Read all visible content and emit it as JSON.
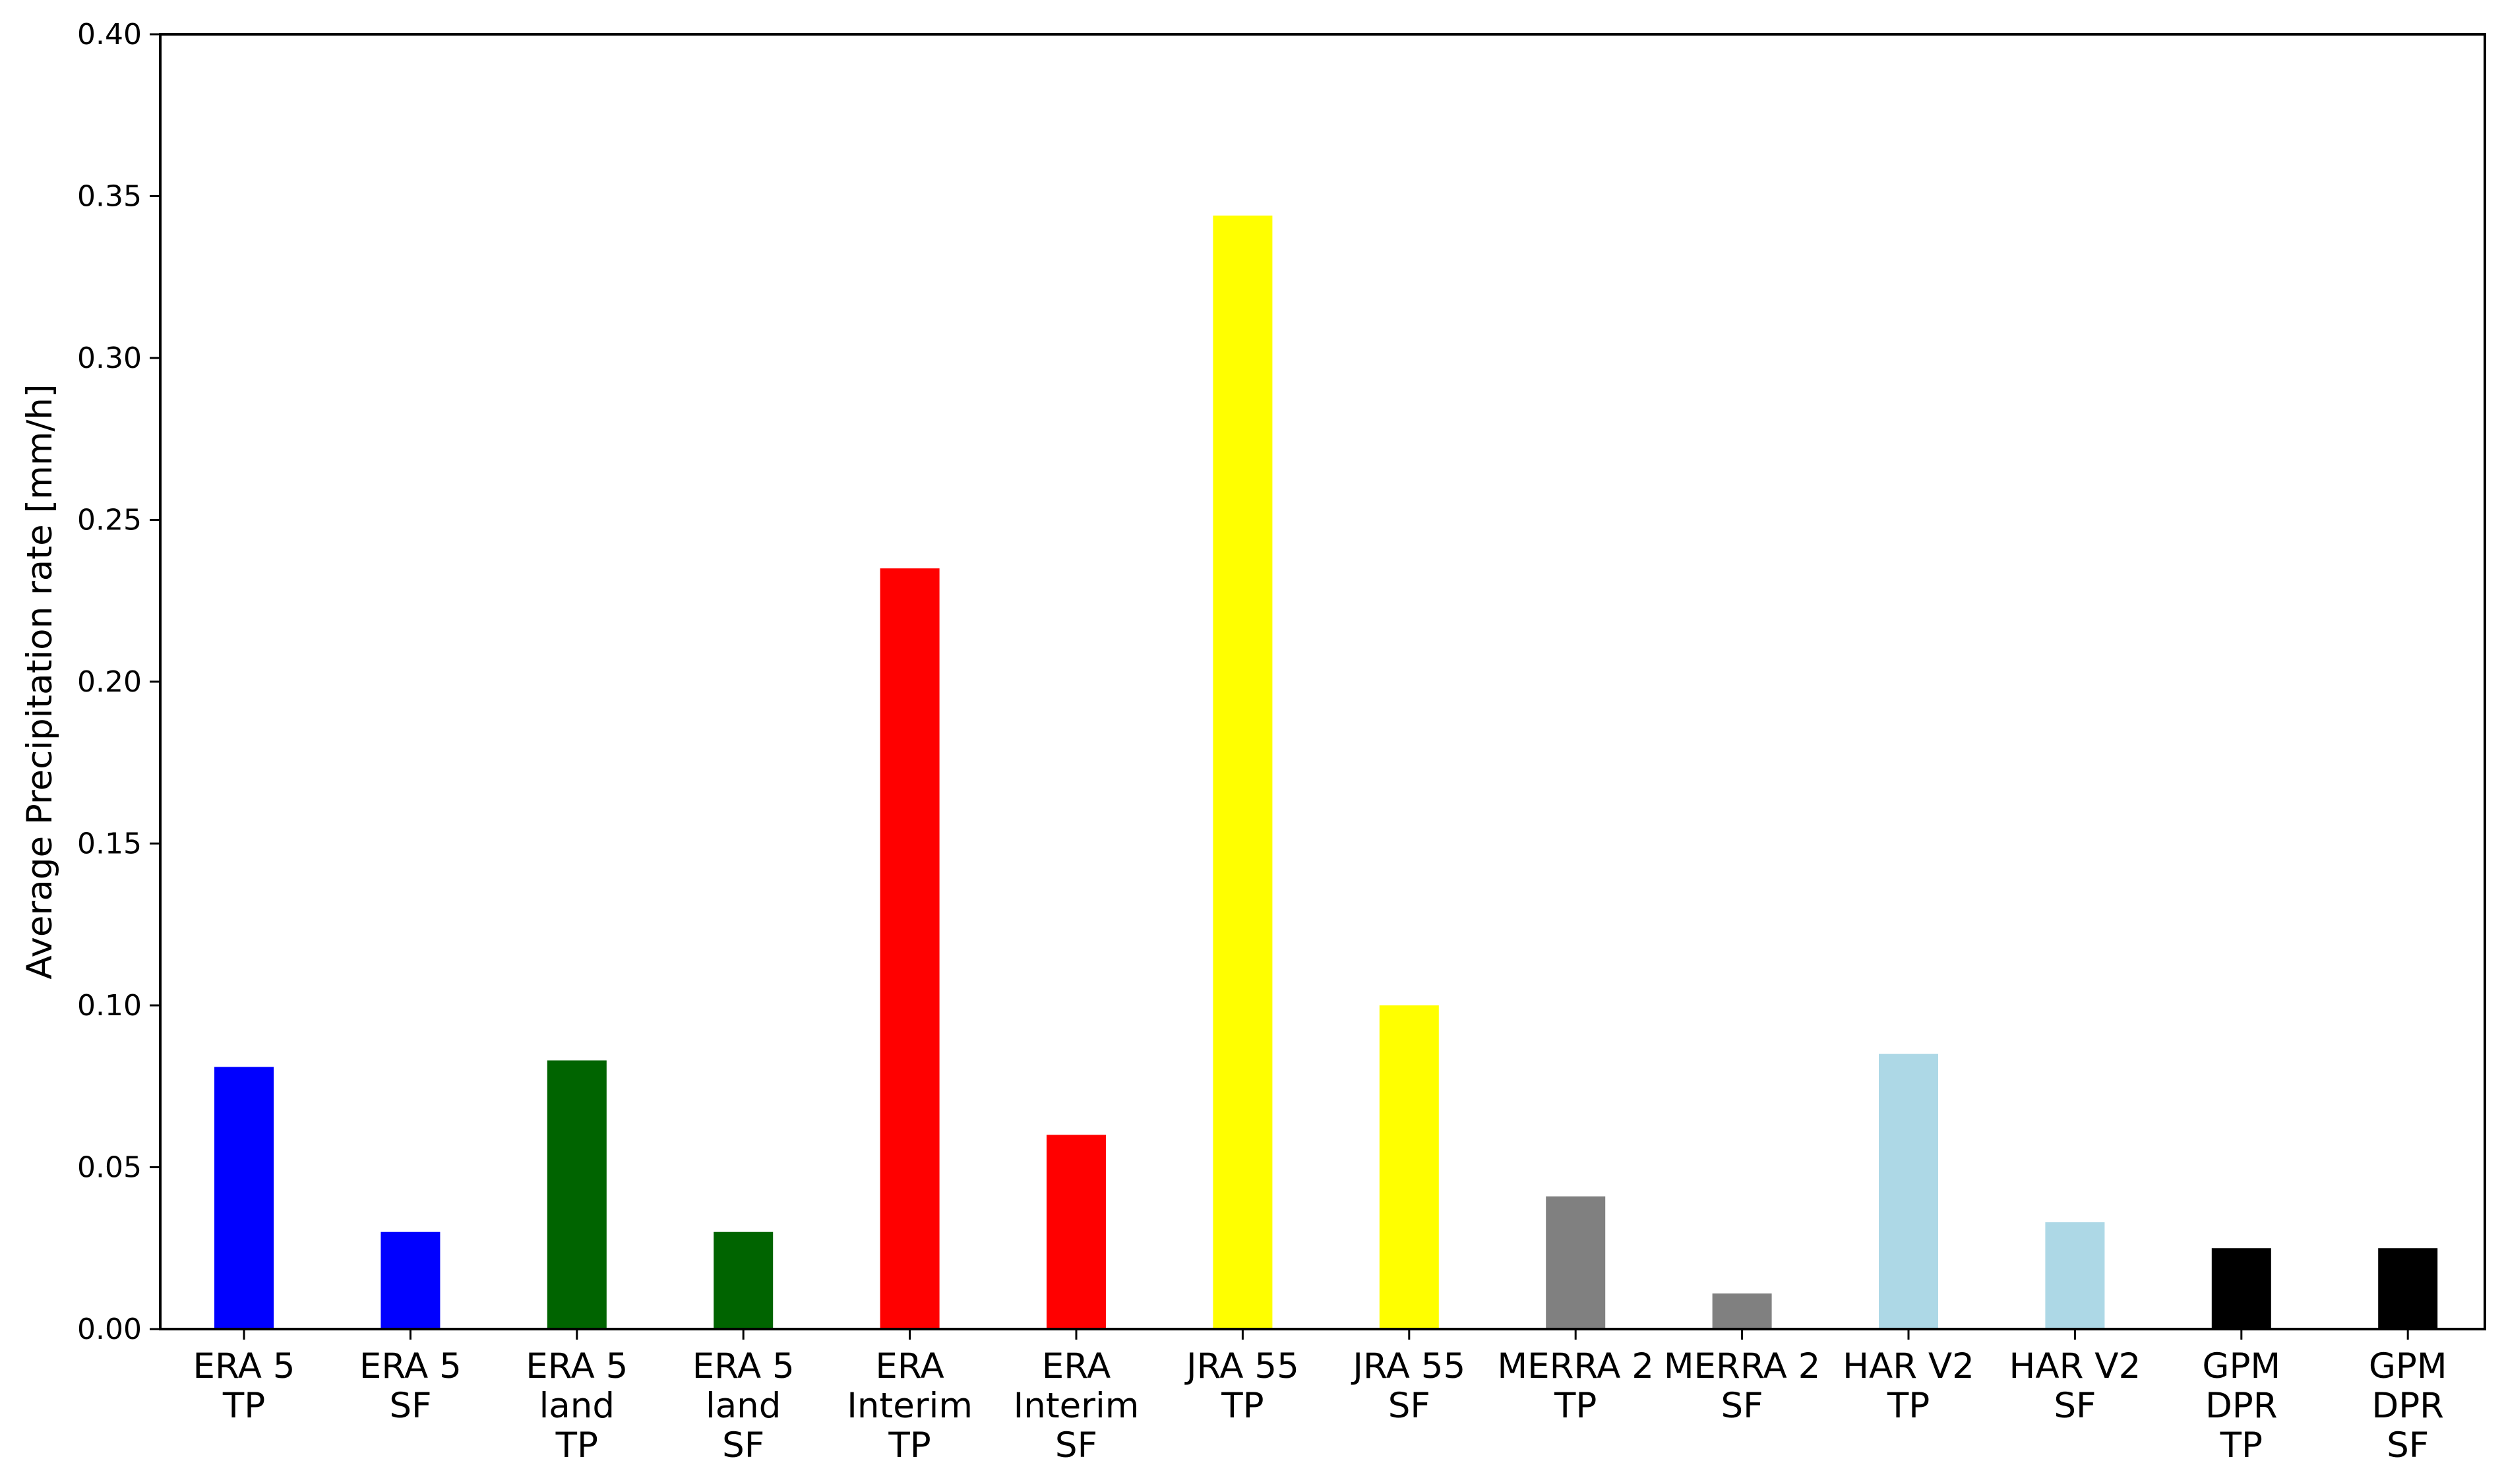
{
  "chart_data": {
    "type": "bar",
    "title": "",
    "xlabel": "",
    "ylabel": "Average Precipitation rate [mm/h]",
    "ylim": [
      0,
      0.4
    ],
    "yticks": [
      "0.00",
      "0.05",
      "0.10",
      "0.15",
      "0.20",
      "0.25",
      "0.30",
      "0.35",
      "0.40"
    ],
    "grid": false,
    "legend": "none",
    "categories": [
      [
        "ERA 5",
        "TP"
      ],
      [
        "ERA 5",
        "SF"
      ],
      [
        "ERA 5",
        "land",
        "TP"
      ],
      [
        "ERA 5",
        "land",
        "SF"
      ],
      [
        "ERA",
        "Interim",
        "TP"
      ],
      [
        "ERA",
        "Interim",
        "SF"
      ],
      [
        "JRA 55",
        "TP"
      ],
      [
        "JRA 55",
        "SF"
      ],
      [
        "MERRA 2",
        "TP"
      ],
      [
        "MERRA 2",
        "SF"
      ],
      [
        "HAR V2",
        "TP"
      ],
      [
        "HAR V2",
        "SF"
      ],
      [
        "GPM",
        "DPR",
        "TP"
      ],
      [
        "GPM",
        "DPR",
        "SF"
      ]
    ],
    "values": [
      0.081,
      0.03,
      0.083,
      0.03,
      0.235,
      0.06,
      0.344,
      0.1,
      0.041,
      0.011,
      0.085,
      0.033,
      0.025,
      0.025
    ],
    "colors": [
      "#0000ff",
      "#0000ff",
      "#006400",
      "#006400",
      "#ff0000",
      "#ff0000",
      "#ffff00",
      "#ffff00",
      "#808080",
      "#808080",
      "#add8e6",
      "#add8e6",
      "#000000",
      "#000000"
    ]
  }
}
